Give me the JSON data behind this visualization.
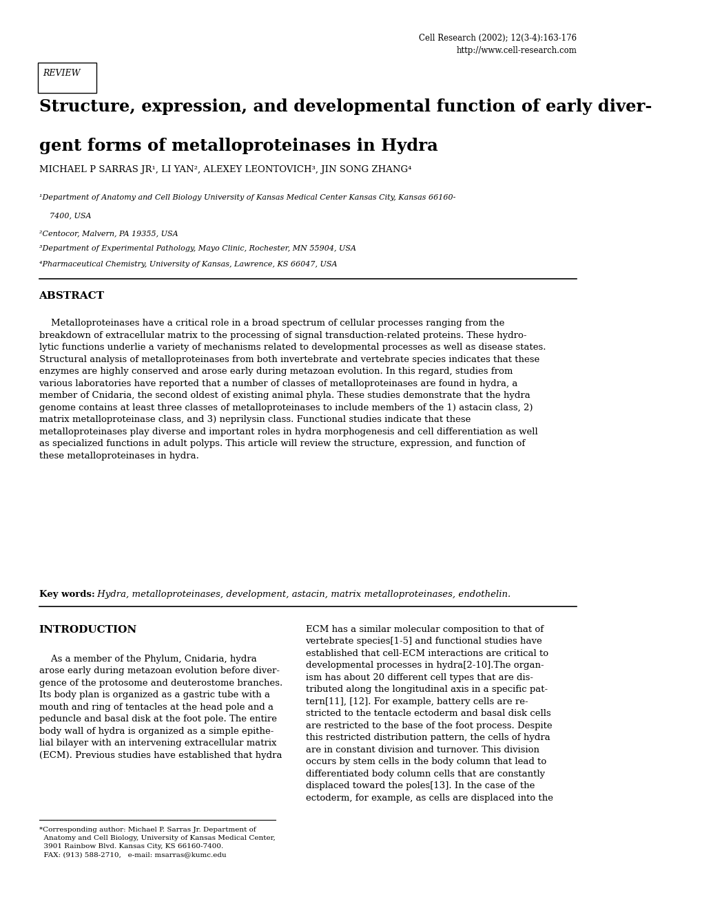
{
  "bg_color": "#ffffff",
  "page_width": 10.2,
  "page_height": 13.35,
  "journal_line1": "Cell Research (2002); 12(3-4):163-176",
  "journal_line2": "http://www.cell-research.com",
  "review_label": "REVIEW",
  "abstract_heading": "ABSTRACT",
  "keywords_bold": "Key words:",
  "keywords_italic": " Hydra, metalloproteinases, development, astacin, matrix metalloproteinases, endothelin.",
  "intro_heading": "INTRODUCTION"
}
